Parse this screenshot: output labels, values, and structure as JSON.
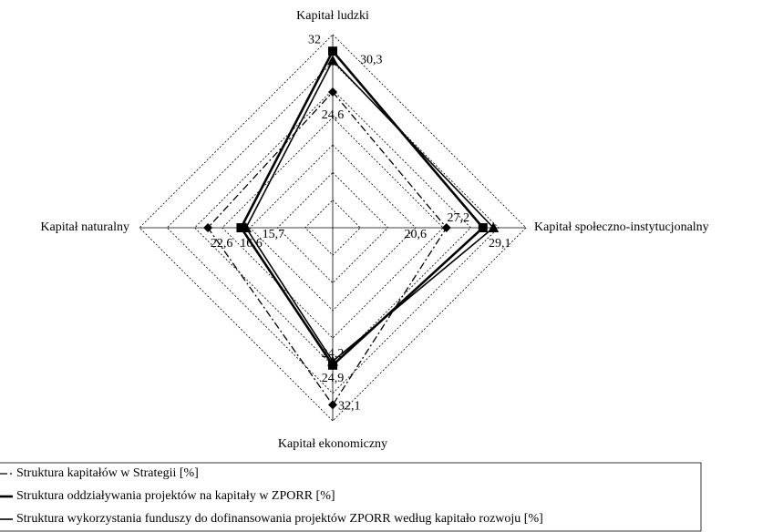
{
  "chart_data": {
    "type": "radar",
    "categories": [
      "Kapitał ludzki",
      "Kapitał społeczno-instytucjonalny",
      "Kapitał ekonomiczny",
      "Kapitał naturalny"
    ],
    "rlim": [
      0,
      35
    ],
    "rticks": [
      5,
      10,
      15,
      20,
      25,
      30,
      35
    ],
    "grid": true,
    "series": [
      {
        "name": "Struktura kapitałów w Strategii [%]",
        "color": "#000000",
        "line": "dashdot",
        "marker": "diamond",
        "values": [
          24.6,
          20.6,
          32.1,
          22.6
        ],
        "value_labels": [
          "24,6",
          "20,6",
          "32,1",
          "22,6"
        ]
      },
      {
        "name": "Struktura oddziaływania projektów na kapitały w ZPORR [%]",
        "color": "#000000",
        "line": "thick",
        "marker": "square",
        "values": [
          32,
          27.2,
          24.9,
          16.6
        ],
        "value_labels": [
          "32",
          "27,2",
          "24,9",
          "16,6"
        ]
      },
      {
        "name": "Struktura wykorzystania funduszy do dofinansowania projektów ZPORR według kapitało rozwoju [%]",
        "color": "#000000",
        "line": "solid",
        "marker": "triangle",
        "values": [
          30.3,
          29.1,
          24.2,
          15.7
        ],
        "value_labels": [
          "30,3",
          "29,1",
          "24,2",
          "15,7"
        ]
      }
    ]
  }
}
